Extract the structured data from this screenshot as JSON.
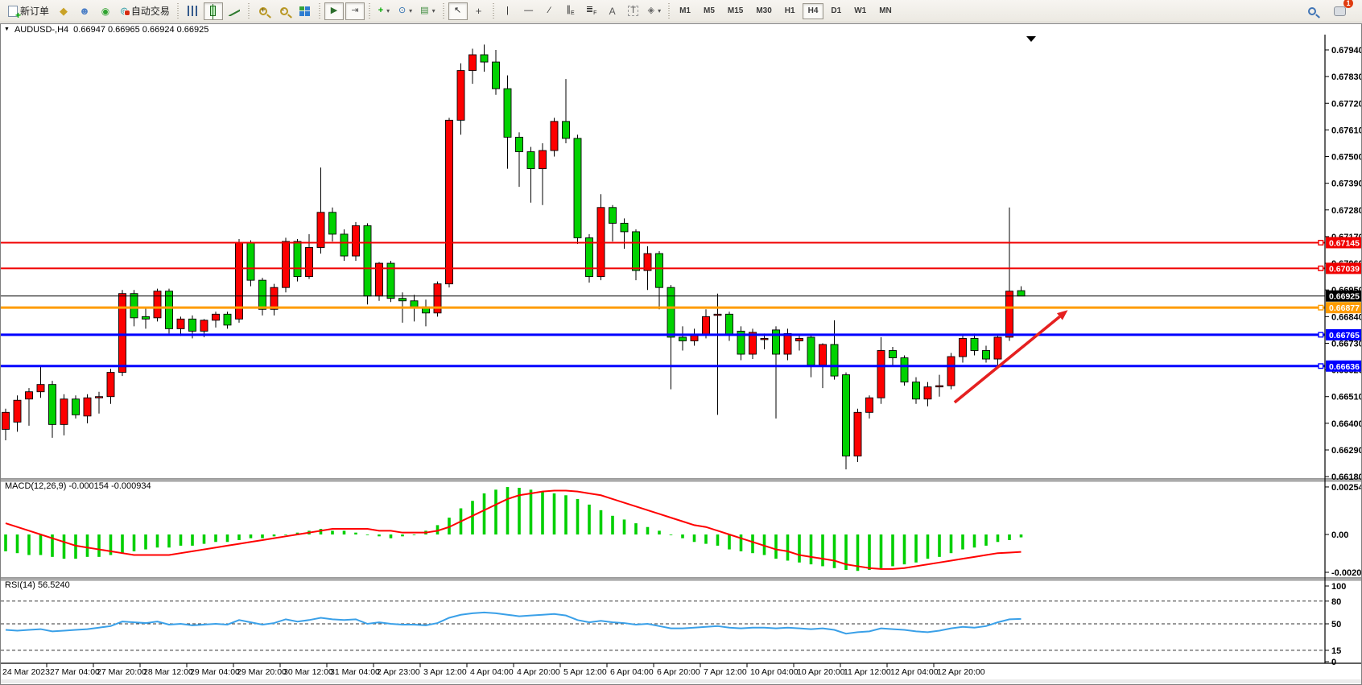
{
  "toolbar": {
    "new_order_label": "新订单",
    "autotrading_label": "自动交易",
    "timeframes": [
      "M1",
      "M5",
      "M15",
      "M30",
      "H1",
      "H4",
      "D1",
      "W1",
      "MN"
    ],
    "active_timeframe": "H4",
    "notification_badge": "1",
    "annotation_tools": [
      "cursor",
      "crosshair",
      "vertical-line",
      "horizontal-line",
      "trendline",
      "equidistant-channel",
      "fibonacci",
      "text",
      "text-label",
      "shapes"
    ],
    "text_tool_label": "A",
    "text_label_tool_label": "T"
  },
  "chart_header": {
    "symbol": "AUDUSD-,H4",
    "ohlc": "0.66947 0.66965 0.66924 0.66925"
  },
  "price_axis": {
    "ticks": [
      "0.67940",
      "0.67830",
      "0.67720",
      "0.67610",
      "0.67500",
      "0.67390",
      "0.67280",
      "0.67170",
      "0.67060",
      "0.66950",
      "0.66840",
      "0.66730",
      "0.66620",
      "0.66510",
      "0.66400",
      "0.66290",
      "0.66180"
    ]
  },
  "hlines": [
    {
      "price": "0.67145",
      "color": "#f00000",
      "width": 2
    },
    {
      "price": "0.67039",
      "color": "#f00000",
      "width": 2
    },
    {
      "price": "0.66925",
      "color": "#000000",
      "width": 1
    },
    {
      "price": "0.66877",
      "color": "#ff9c00",
      "width": 3
    },
    {
      "price": "0.66765",
      "color": "#0000ff",
      "width": 3
    },
    {
      "price": "0.66636",
      "color": "#0000ff",
      "width": 3
    }
  ],
  "chart_data": {
    "type": "candlestick",
    "symbol": "AUDUSD",
    "timeframe": "H4",
    "bull_color": "#fd0000",
    "bear_color": "#00d200",
    "candles": [
      [
        0.66375,
        0.6646,
        0.6633,
        0.66445
      ],
      [
        0.66405,
        0.66515,
        0.66365,
        0.66495
      ],
      [
        0.665,
        0.66545,
        0.6639,
        0.6653
      ],
      [
        0.6653,
        0.6664,
        0.66505,
        0.6656
      ],
      [
        0.6656,
        0.66575,
        0.6634,
        0.66395
      ],
      [
        0.66395,
        0.6652,
        0.6635,
        0.665
      ],
      [
        0.665,
        0.66515,
        0.6642,
        0.66435
      ],
      [
        0.6643,
        0.6652,
        0.664,
        0.66505
      ],
      [
        0.66505,
        0.6653,
        0.6644,
        0.6651
      ],
      [
        0.6651,
        0.66625,
        0.6648,
        0.6661
      ],
      [
        0.6661,
        0.6695,
        0.66595,
        0.66935
      ],
      [
        0.66935,
        0.6695,
        0.668,
        0.66835
      ],
      [
        0.6684,
        0.66875,
        0.6679,
        0.6683
      ],
      [
        0.66835,
        0.66955,
        0.6682,
        0.66945
      ],
      [
        0.66945,
        0.66955,
        0.6677,
        0.6679
      ],
      [
        0.6679,
        0.6684,
        0.6676,
        0.6683
      ],
      [
        0.6683,
        0.66845,
        0.6675,
        0.6678
      ],
      [
        0.6678,
        0.6683,
        0.66755,
        0.66825
      ],
      [
        0.66825,
        0.6686,
        0.66795,
        0.6685
      ],
      [
        0.6685,
        0.6686,
        0.6679,
        0.66805
      ],
      [
        0.6683,
        0.6716,
        0.66815,
        0.67145
      ],
      [
        0.67145,
        0.67155,
        0.66965,
        0.6699
      ],
      [
        0.6699,
        0.67,
        0.66845,
        0.6687
      ],
      [
        0.6687,
        0.66975,
        0.66845,
        0.6696
      ],
      [
        0.6696,
        0.67165,
        0.6694,
        0.6715
      ],
      [
        0.6715,
        0.6716,
        0.66985,
        0.67005
      ],
      [
        0.67005,
        0.6718,
        0.66995,
        0.67125
      ],
      [
        0.67125,
        0.67455,
        0.671,
        0.6727
      ],
      [
        0.6727,
        0.6729,
        0.6715,
        0.6718
      ],
      [
        0.6718,
        0.672,
        0.6707,
        0.6709
      ],
      [
        0.6709,
        0.6723,
        0.6707,
        0.67215
      ],
      [
        0.67215,
        0.67225,
        0.6689,
        0.66925
      ],
      [
        0.66925,
        0.67065,
        0.66905,
        0.6706
      ],
      [
        0.6706,
        0.6707,
        0.669,
        0.66915
      ],
      [
        0.66915,
        0.6694,
        0.66815,
        0.66905
      ],
      [
        0.66905,
        0.6693,
        0.6682,
        0.6688
      ],
      [
        0.6688,
        0.6691,
        0.668,
        0.66855
      ],
      [
        0.66855,
        0.66985,
        0.6684,
        0.66975
      ],
      [
        0.66975,
        0.6766,
        0.6696,
        0.6765
      ],
      [
        0.6765,
        0.67885,
        0.6759,
        0.67855
      ],
      [
        0.67855,
        0.67945,
        0.678,
        0.6792
      ],
      [
        0.6792,
        0.67962,
        0.6785,
        0.6789
      ],
      [
        0.6789,
        0.6794,
        0.67755,
        0.6778
      ],
      [
        0.6778,
        0.67835,
        0.6745,
        0.6758
      ],
      [
        0.6758,
        0.676,
        0.67375,
        0.6752
      ],
      [
        0.6752,
        0.6754,
        0.6731,
        0.6745
      ],
      [
        0.6745,
        0.67555,
        0.673,
        0.67525
      ],
      [
        0.67525,
        0.6766,
        0.675,
        0.67645
      ],
      [
        0.67645,
        0.6782,
        0.67555,
        0.67575
      ],
      [
        0.67575,
        0.6759,
        0.6714,
        0.67165
      ],
      [
        0.67165,
        0.6718,
        0.6698,
        0.67005
      ],
      [
        0.67005,
        0.67345,
        0.6699,
        0.6729
      ],
      [
        0.6729,
        0.673,
        0.6715,
        0.67225
      ],
      [
        0.67225,
        0.67245,
        0.6712,
        0.6719
      ],
      [
        0.6719,
        0.672,
        0.6699,
        0.6703
      ],
      [
        0.6703,
        0.6713,
        0.6695,
        0.671
      ],
      [
        0.671,
        0.6711,
        0.6687,
        0.6696
      ],
      [
        0.6696,
        0.6697,
        0.6654,
        0.66755
      ],
      [
        0.66755,
        0.668,
        0.667,
        0.6674
      ],
      [
        0.6674,
        0.6679,
        0.6672,
        0.66765
      ],
      [
        0.66765,
        0.6687,
        0.6675,
        0.6684
      ],
      [
        0.66845,
        0.66935,
        0.66435,
        0.6685
      ],
      [
        0.6685,
        0.6686,
        0.6674,
        0.66765
      ],
      [
        0.6678,
        0.668,
        0.6666,
        0.66685
      ],
      [
        0.66685,
        0.6679,
        0.66665,
        0.66775
      ],
      [
        0.66745,
        0.6677,
        0.66705,
        0.6675
      ],
      [
        0.66785,
        0.668,
        0.6642,
        0.66685
      ],
      [
        0.66685,
        0.6679,
        0.6666,
        0.6677
      ],
      [
        0.6674,
        0.6676,
        0.667,
        0.6675
      ],
      [
        0.66755,
        0.66765,
        0.6659,
        0.6664
      ],
      [
        0.6664,
        0.6673,
        0.66545,
        0.66725
      ],
      [
        0.66725,
        0.66825,
        0.6658,
        0.66595
      ],
      [
        0.666,
        0.6661,
        0.6621,
        0.66265
      ],
      [
        0.66265,
        0.6646,
        0.6624,
        0.66445
      ],
      [
        0.66445,
        0.66515,
        0.6642,
        0.66505
      ],
      [
        0.66505,
        0.66755,
        0.6648,
        0.667
      ],
      [
        0.667,
        0.66715,
        0.6664,
        0.6667
      ],
      [
        0.6667,
        0.6668,
        0.66555,
        0.6657
      ],
      [
        0.6657,
        0.6659,
        0.6648,
        0.665
      ],
      [
        0.665,
        0.6657,
        0.6647,
        0.6655
      ],
      [
        0.6655,
        0.666,
        0.6651,
        0.66555
      ],
      [
        0.66555,
        0.6669,
        0.6654,
        0.66675
      ],
      [
        0.66675,
        0.6676,
        0.6665,
        0.6675
      ],
      [
        0.6675,
        0.6677,
        0.6668,
        0.667
      ],
      [
        0.667,
        0.6672,
        0.6665,
        0.66665
      ],
      [
        0.66665,
        0.6676,
        0.6664,
        0.66755
      ],
      [
        0.66755,
        0.6729,
        0.6674,
        0.66945
      ],
      [
        0.66947,
        0.66965,
        0.66924,
        0.66925
      ]
    ],
    "x_labels": [
      "24 Mar 2023",
      "27 Mar 04:00",
      "27 Mar 20:00",
      "28 Mar 12:00",
      "29 Mar 04:00",
      "29 Mar 20:00",
      "30 Mar 12:00",
      "31 Mar 04:00",
      "2 Apr 23:00",
      "3 Apr 12:00",
      "4 Apr 04:00",
      "4 Apr 20:00",
      "5 Apr 12:00",
      "6 Apr 04:00",
      "6 Apr 20:00",
      "7 Apr 12:00",
      "10 Apr 04:00",
      "10 Apr 20:00",
      "11 Apr 12:00",
      "12 Apr 04:00",
      "12 Apr 20:00"
    ],
    "macd": {
      "label": "MACD(12,26,9)",
      "values": "-0.000154 -0.000934",
      "axis_labels": [
        "0.002545",
        "0.00",
        "-0.002026"
      ],
      "histogram_color": "#00cf00",
      "signal_color": "#ff0000",
      "histogram": [
        -0.0009,
        -0.001,
        -0.0011,
        -0.0011,
        -0.0012,
        -0.0013,
        -0.0013,
        -0.0012,
        -0.0012,
        -0.0011,
        -0.001,
        -0.0009,
        -0.0008,
        -0.0007,
        -0.0007,
        -0.0006,
        -0.0006,
        -0.0005,
        -0.0004,
        -0.0004,
        -0.0003,
        -0.0002,
        -0.0002,
        -0.0001,
        0.0,
        0.0001,
        0.0002,
        0.0003,
        0.0002,
        0.0002,
        0.0001,
        0.0,
        -0.0001,
        -0.0002,
        -0.0001,
        0.0,
        0.0002,
        0.0005,
        0.0009,
        0.0014,
        0.0018,
        0.0022,
        0.0024,
        0.00254,
        0.0025,
        0.0024,
        0.0023,
        0.0022,
        0.0021,
        0.0019,
        0.0016,
        0.0013,
        0.001,
        0.0008,
        0.0006,
        0.0004,
        0.0002,
        0.0,
        -0.0002,
        -0.0004,
        -0.0005,
        -0.0006,
        -0.0008,
        -0.0009,
        -0.001,
        -0.0011,
        -0.0013,
        -0.0014,
        -0.0015,
        -0.0016,
        -0.0017,
        -0.0018,
        -0.0019,
        -0.00195,
        -0.0019,
        -0.0018,
        -0.0017,
        -0.0016,
        -0.0015,
        -0.0013,
        -0.0012,
        -0.001,
        -0.0008,
        -0.0007,
        -0.0006,
        -0.0004,
        -0.0003,
        -0.000154
      ],
      "signal": [
        0.0006,
        0.0004,
        0.0002,
        0.0,
        -0.0002,
        -0.0004,
        -0.0006,
        -0.0007,
        -0.0008,
        -0.0009,
        -0.001,
        -0.0011,
        -0.0011,
        -0.0011,
        -0.0011,
        -0.001,
        -0.0009,
        -0.0008,
        -0.0007,
        -0.0006,
        -0.0005,
        -0.0004,
        -0.0003,
        -0.0002,
        -0.0001,
        0.0,
        0.0001,
        0.0002,
        0.0003,
        0.0003,
        0.0003,
        0.0003,
        0.0002,
        0.0002,
        0.0001,
        0.0001,
        0.0001,
        0.0002,
        0.0004,
        0.0007,
        0.001,
        0.0013,
        0.0016,
        0.0019,
        0.0021,
        0.0022,
        0.0023,
        0.00235,
        0.00235,
        0.0023,
        0.0022,
        0.0021,
        0.0019,
        0.0017,
        0.0015,
        0.0013,
        0.0011,
        0.0009,
        0.0007,
        0.0005,
        0.0004,
        0.0002,
        0.0,
        -0.0002,
        -0.0004,
        -0.0006,
        -0.0008,
        -0.0009,
        -0.0011,
        -0.0012,
        -0.0013,
        -0.0014,
        -0.0016,
        -0.0017,
        -0.0018,
        -0.00185,
        -0.00185,
        -0.0018,
        -0.0017,
        -0.0016,
        -0.0015,
        -0.0014,
        -0.0013,
        -0.0012,
        -0.0011,
        -0.001,
        -0.00097,
        -0.000934
      ]
    },
    "rsi": {
      "label": "RSI(14)",
      "value": "56.5240",
      "line_color": "#3aa0e8",
      "levels": [
        100,
        80,
        50,
        15,
        0
      ],
      "dashed_levels": [
        80,
        50,
        15
      ],
      "series": [
        42,
        41,
        42,
        43,
        40,
        41,
        42,
        43,
        45,
        47,
        53,
        52,
        51,
        53,
        49,
        50,
        48,
        49,
        50,
        49,
        55,
        52,
        49,
        51,
        56,
        53,
        55,
        58,
        56,
        55,
        56,
        50,
        52,
        50,
        49,
        49,
        48,
        51,
        58,
        62,
        64,
        65,
        64,
        62,
        60,
        61,
        62,
        63,
        61,
        55,
        52,
        54,
        52,
        51,
        49,
        50,
        47,
        44,
        44,
        45,
        46,
        47,
        45,
        44,
        45,
        45,
        44,
        45,
        44,
        43,
        44,
        42,
        37,
        39,
        40,
        44,
        43,
        42,
        40,
        39,
        41,
        44,
        46,
        45,
        47,
        52,
        56,
        56.52
      ]
    },
    "trend_arrow": {
      "color": "#e52020",
      "from": {
        "index": 81.3,
        "price": 0.66486
      },
      "to": {
        "index": 91,
        "price": 0.66867
      }
    }
  }
}
